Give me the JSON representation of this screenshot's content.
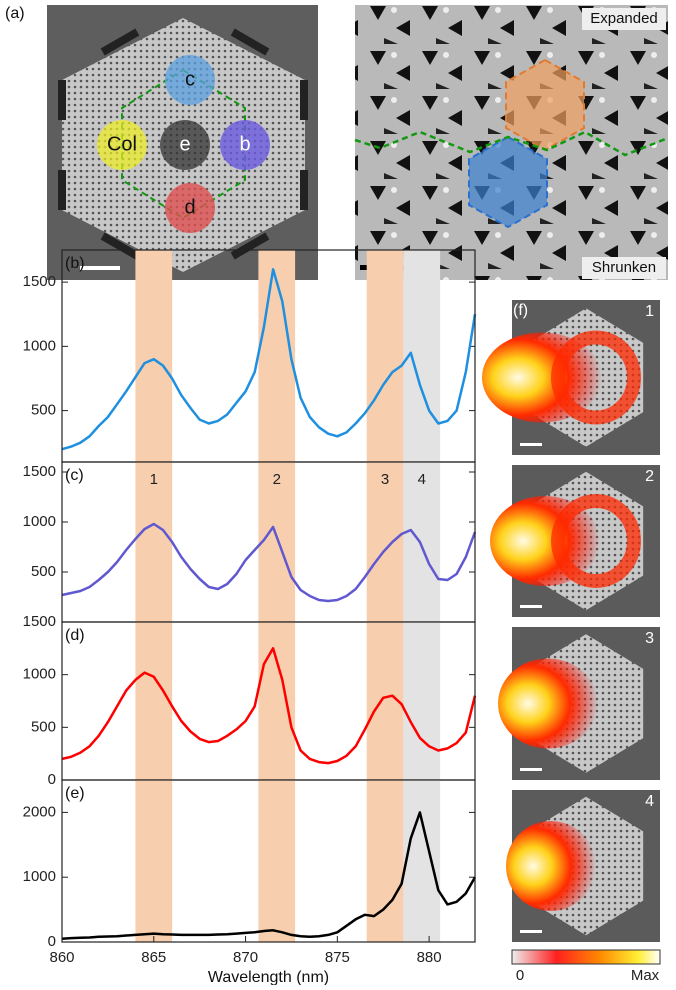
{
  "panel_a": {
    "label": "(a)",
    "regions": [
      "c",
      "Col",
      "e",
      "b",
      "d"
    ],
    "expanded": "Expanded",
    "shrunken": "Shrunken"
  },
  "panel_f": {
    "label": "(f)",
    "maps": [
      "1",
      "2",
      "3",
      "4"
    ],
    "colorbar": {
      "min": "0",
      "max": "Max"
    }
  },
  "chart_data": [
    {
      "type": "line",
      "panel": "(b)",
      "color": "#1f8fe0",
      "xlim": [
        860,
        882.5
      ],
      "ylim": [
        100,
        1750
      ],
      "yticks": [
        500,
        1000,
        1500
      ],
      "bands": [
        {
          "x": [
            864,
            866
          ],
          "color": "#f7cfae"
        },
        {
          "x": [
            870.7,
            872.7
          ],
          "color": "#f7cfae"
        },
        {
          "x": [
            876.6,
            878.6
          ],
          "color": "#f7cfae"
        },
        {
          "x": [
            878.6,
            880.6
          ],
          "color": "#e3e3e3"
        }
      ],
      "x": [
        860,
        860.5,
        861,
        861.5,
        862,
        862.5,
        863,
        863.5,
        864,
        864.5,
        865,
        865.5,
        866,
        866.5,
        867,
        867.5,
        868,
        868.5,
        869,
        869.5,
        870,
        870.5,
        871,
        871.5,
        872,
        872.5,
        873,
        873.5,
        874,
        874.5,
        875,
        875.5,
        876,
        876.5,
        877,
        877.5,
        878,
        878.5,
        879,
        879.5,
        880,
        880.5,
        881,
        881.5,
        882,
        882.5
      ],
      "values": [
        200,
        220,
        250,
        300,
        380,
        450,
        550,
        650,
        760,
        870,
        900,
        850,
        750,
        620,
        520,
        430,
        400,
        420,
        470,
        560,
        650,
        800,
        1150,
        1600,
        1350,
        900,
        600,
        450,
        370,
        320,
        300,
        330,
        400,
        480,
        580,
        700,
        800,
        850,
        950,
        700,
        500,
        400,
        420,
        500,
        800,
        1250
      ]
    },
    {
      "type": "line",
      "panel": "(c)",
      "color": "#6058d0",
      "xlim": [
        860,
        882.5
      ],
      "ylim": [
        0,
        1600
      ],
      "yticks": [
        500,
        1000,
        1500
      ],
      "bands": [
        {
          "x": [
            864,
            866
          ],
          "color": "#f7cfae",
          "label": "1"
        },
        {
          "x": [
            870.7,
            872.7
          ],
          "color": "#f7cfae",
          "label": "2"
        },
        {
          "x": [
            876.6,
            878.6
          ],
          "color": "#f7cfae",
          "label": "3"
        },
        {
          "x": [
            878.6,
            880.6
          ],
          "color": "#e3e3e3",
          "label": "4"
        }
      ],
      "x": [
        860,
        860.5,
        861,
        861.5,
        862,
        862.5,
        863,
        863.5,
        864,
        864.5,
        865,
        865.5,
        866,
        866.5,
        867,
        867.5,
        868,
        868.5,
        869,
        869.5,
        870,
        870.5,
        871,
        871.5,
        872,
        872.5,
        873,
        873.5,
        874,
        874.5,
        875,
        875.5,
        876,
        876.5,
        877,
        877.5,
        878,
        878.5,
        879,
        879.5,
        880,
        880.5,
        881,
        881.5,
        882,
        882.5
      ],
      "values": [
        270,
        290,
        310,
        350,
        420,
        500,
        600,
        720,
        830,
        930,
        980,
        920,
        800,
        650,
        530,
        430,
        350,
        330,
        380,
        480,
        620,
        720,
        820,
        950,
        700,
        450,
        320,
        260,
        220,
        210,
        220,
        260,
        330,
        450,
        580,
        700,
        800,
        880,
        920,
        800,
        580,
        430,
        420,
        480,
        650,
        900
      ]
    },
    {
      "type": "line",
      "panel": "(d)",
      "color": "#ff0000",
      "xlim": [
        860,
        882.5
      ],
      "ylim": [
        0,
        1500
      ],
      "yticks": [
        0,
        500,
        1000,
        1500
      ],
      "bands": [
        {
          "x": [
            864,
            866
          ],
          "color": "#f7cfae"
        },
        {
          "x": [
            870.7,
            872.7
          ],
          "color": "#f7cfae"
        },
        {
          "x": [
            876.6,
            878.6
          ],
          "color": "#f7cfae"
        },
        {
          "x": [
            878.6,
            880.6
          ],
          "color": "#e3e3e3"
        }
      ],
      "x": [
        860,
        860.5,
        861,
        861.5,
        862,
        862.5,
        863,
        863.5,
        864,
        864.5,
        865,
        865.5,
        866,
        866.5,
        867,
        867.5,
        868,
        868.5,
        869,
        869.5,
        870,
        870.5,
        871,
        871.5,
        872,
        872.5,
        873,
        873.5,
        874,
        874.5,
        875,
        875.5,
        876,
        876.5,
        877,
        877.5,
        878,
        878.5,
        879,
        879.5,
        880,
        880.5,
        881,
        881.5,
        882,
        882.5
      ],
      "values": [
        200,
        220,
        260,
        320,
        420,
        550,
        700,
        850,
        950,
        1020,
        980,
        850,
        700,
        560,
        460,
        390,
        360,
        370,
        420,
        480,
        560,
        700,
        1100,
        1250,
        950,
        500,
        280,
        200,
        170,
        160,
        180,
        230,
        320,
        480,
        650,
        780,
        800,
        720,
        550,
        400,
        320,
        280,
        300,
        350,
        450,
        800
      ]
    },
    {
      "type": "line",
      "panel": "(e)",
      "color": "#000000",
      "xlim": [
        860,
        882.5
      ],
      "ylim": [
        0,
        2500
      ],
      "yticks": [
        0,
        1000,
        2000
      ],
      "xticks": [
        860,
        865,
        870,
        875,
        880
      ],
      "xlabel": "Wavelength (nm)",
      "bands": [
        {
          "x": [
            864,
            866
          ],
          "color": "#f7cfae"
        },
        {
          "x": [
            870.7,
            872.7
          ],
          "color": "#f7cfae"
        },
        {
          "x": [
            876.6,
            878.6
          ],
          "color": "#f7cfae"
        },
        {
          "x": [
            878.6,
            880.6
          ],
          "color": "#e3e3e3"
        }
      ],
      "x": [
        860,
        860.5,
        861,
        861.5,
        862,
        862.5,
        863,
        863.5,
        864,
        864.5,
        865,
        865.5,
        866,
        866.5,
        867,
        867.5,
        868,
        868.5,
        869,
        869.5,
        870,
        870.5,
        871,
        871.5,
        872,
        872.5,
        873,
        873.5,
        874,
        874.5,
        875,
        875.5,
        876,
        876.5,
        877,
        877.5,
        878,
        878.5,
        879,
        879.5,
        880,
        880.5,
        881,
        881.5,
        882,
        882.5
      ],
      "values": [
        50,
        60,
        65,
        70,
        80,
        85,
        90,
        100,
        110,
        120,
        130,
        120,
        115,
        110,
        110,
        110,
        110,
        115,
        120,
        130,
        140,
        150,
        170,
        180,
        150,
        110,
        90,
        80,
        90,
        110,
        150,
        250,
        350,
        420,
        400,
        500,
        650,
        900,
        1600,
        2000,
        1400,
        800,
        580,
        620,
        750,
        1000
      ]
    }
  ]
}
